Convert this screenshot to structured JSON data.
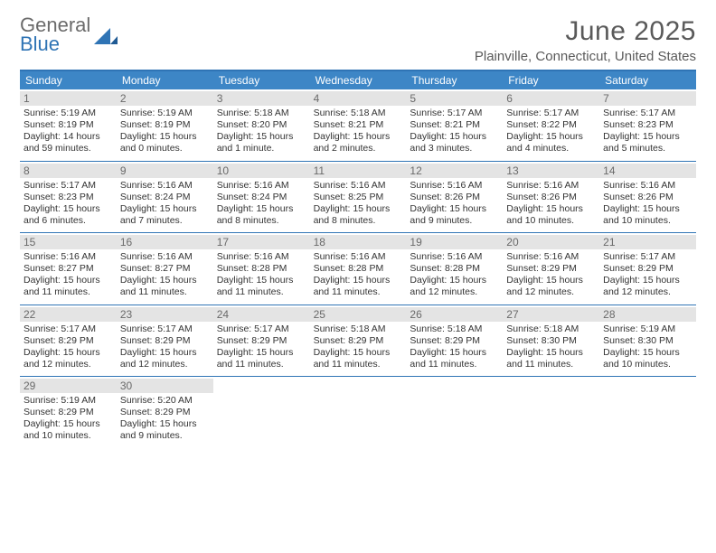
{
  "brand": {
    "top": "General",
    "bottom": "Blue"
  },
  "title": "June 2025",
  "location": "Plainville, Connecticut, United States",
  "colors": {
    "header_bg": "#3d86c6",
    "header_border": "#2f74b5",
    "daynum_bg": "#e4e4e4",
    "text": "#333333",
    "muted": "#6a6a6a",
    "brand_gray": "#6b6b6b",
    "brand_blue": "#2f74b5"
  },
  "day_names": [
    "Sunday",
    "Monday",
    "Tuesday",
    "Wednesday",
    "Thursday",
    "Friday",
    "Saturday"
  ],
  "weeks": [
    [
      {
        "n": "1",
        "sr": "Sunrise: 5:19 AM",
        "ss": "Sunset: 8:19 PM",
        "d1": "Daylight: 14 hours",
        "d2": "and 59 minutes."
      },
      {
        "n": "2",
        "sr": "Sunrise: 5:19 AM",
        "ss": "Sunset: 8:19 PM",
        "d1": "Daylight: 15 hours",
        "d2": "and 0 minutes."
      },
      {
        "n": "3",
        "sr": "Sunrise: 5:18 AM",
        "ss": "Sunset: 8:20 PM",
        "d1": "Daylight: 15 hours",
        "d2": "and 1 minute."
      },
      {
        "n": "4",
        "sr": "Sunrise: 5:18 AM",
        "ss": "Sunset: 8:21 PM",
        "d1": "Daylight: 15 hours",
        "d2": "and 2 minutes."
      },
      {
        "n": "5",
        "sr": "Sunrise: 5:17 AM",
        "ss": "Sunset: 8:21 PM",
        "d1": "Daylight: 15 hours",
        "d2": "and 3 minutes."
      },
      {
        "n": "6",
        "sr": "Sunrise: 5:17 AM",
        "ss": "Sunset: 8:22 PM",
        "d1": "Daylight: 15 hours",
        "d2": "and 4 minutes."
      },
      {
        "n": "7",
        "sr": "Sunrise: 5:17 AM",
        "ss": "Sunset: 8:23 PM",
        "d1": "Daylight: 15 hours",
        "d2": "and 5 minutes."
      }
    ],
    [
      {
        "n": "8",
        "sr": "Sunrise: 5:17 AM",
        "ss": "Sunset: 8:23 PM",
        "d1": "Daylight: 15 hours",
        "d2": "and 6 minutes."
      },
      {
        "n": "9",
        "sr": "Sunrise: 5:16 AM",
        "ss": "Sunset: 8:24 PM",
        "d1": "Daylight: 15 hours",
        "d2": "and 7 minutes."
      },
      {
        "n": "10",
        "sr": "Sunrise: 5:16 AM",
        "ss": "Sunset: 8:24 PM",
        "d1": "Daylight: 15 hours",
        "d2": "and 8 minutes."
      },
      {
        "n": "11",
        "sr": "Sunrise: 5:16 AM",
        "ss": "Sunset: 8:25 PM",
        "d1": "Daylight: 15 hours",
        "d2": "and 8 minutes."
      },
      {
        "n": "12",
        "sr": "Sunrise: 5:16 AM",
        "ss": "Sunset: 8:26 PM",
        "d1": "Daylight: 15 hours",
        "d2": "and 9 minutes."
      },
      {
        "n": "13",
        "sr": "Sunrise: 5:16 AM",
        "ss": "Sunset: 8:26 PM",
        "d1": "Daylight: 15 hours",
        "d2": "and 10 minutes."
      },
      {
        "n": "14",
        "sr": "Sunrise: 5:16 AM",
        "ss": "Sunset: 8:26 PM",
        "d1": "Daylight: 15 hours",
        "d2": "and 10 minutes."
      }
    ],
    [
      {
        "n": "15",
        "sr": "Sunrise: 5:16 AM",
        "ss": "Sunset: 8:27 PM",
        "d1": "Daylight: 15 hours",
        "d2": "and 11 minutes."
      },
      {
        "n": "16",
        "sr": "Sunrise: 5:16 AM",
        "ss": "Sunset: 8:27 PM",
        "d1": "Daylight: 15 hours",
        "d2": "and 11 minutes."
      },
      {
        "n": "17",
        "sr": "Sunrise: 5:16 AM",
        "ss": "Sunset: 8:28 PM",
        "d1": "Daylight: 15 hours",
        "d2": "and 11 minutes."
      },
      {
        "n": "18",
        "sr": "Sunrise: 5:16 AM",
        "ss": "Sunset: 8:28 PM",
        "d1": "Daylight: 15 hours",
        "d2": "and 11 minutes."
      },
      {
        "n": "19",
        "sr": "Sunrise: 5:16 AM",
        "ss": "Sunset: 8:28 PM",
        "d1": "Daylight: 15 hours",
        "d2": "and 12 minutes."
      },
      {
        "n": "20",
        "sr": "Sunrise: 5:16 AM",
        "ss": "Sunset: 8:29 PM",
        "d1": "Daylight: 15 hours",
        "d2": "and 12 minutes."
      },
      {
        "n": "21",
        "sr": "Sunrise: 5:17 AM",
        "ss": "Sunset: 8:29 PM",
        "d1": "Daylight: 15 hours",
        "d2": "and 12 minutes."
      }
    ],
    [
      {
        "n": "22",
        "sr": "Sunrise: 5:17 AM",
        "ss": "Sunset: 8:29 PM",
        "d1": "Daylight: 15 hours",
        "d2": "and 12 minutes."
      },
      {
        "n": "23",
        "sr": "Sunrise: 5:17 AM",
        "ss": "Sunset: 8:29 PM",
        "d1": "Daylight: 15 hours",
        "d2": "and 12 minutes."
      },
      {
        "n": "24",
        "sr": "Sunrise: 5:17 AM",
        "ss": "Sunset: 8:29 PM",
        "d1": "Daylight: 15 hours",
        "d2": "and 11 minutes."
      },
      {
        "n": "25",
        "sr": "Sunrise: 5:18 AM",
        "ss": "Sunset: 8:29 PM",
        "d1": "Daylight: 15 hours",
        "d2": "and 11 minutes."
      },
      {
        "n": "26",
        "sr": "Sunrise: 5:18 AM",
        "ss": "Sunset: 8:29 PM",
        "d1": "Daylight: 15 hours",
        "d2": "and 11 minutes."
      },
      {
        "n": "27",
        "sr": "Sunrise: 5:18 AM",
        "ss": "Sunset: 8:30 PM",
        "d1": "Daylight: 15 hours",
        "d2": "and 11 minutes."
      },
      {
        "n": "28",
        "sr": "Sunrise: 5:19 AM",
        "ss": "Sunset: 8:30 PM",
        "d1": "Daylight: 15 hours",
        "d2": "and 10 minutes."
      }
    ],
    [
      {
        "n": "29",
        "sr": "Sunrise: 5:19 AM",
        "ss": "Sunset: 8:29 PM",
        "d1": "Daylight: 15 hours",
        "d2": "and 10 minutes."
      },
      {
        "n": "30",
        "sr": "Sunrise: 5:20 AM",
        "ss": "Sunset: 8:29 PM",
        "d1": "Daylight: 15 hours",
        "d2": "and 9 minutes."
      },
      null,
      null,
      null,
      null,
      null
    ]
  ]
}
